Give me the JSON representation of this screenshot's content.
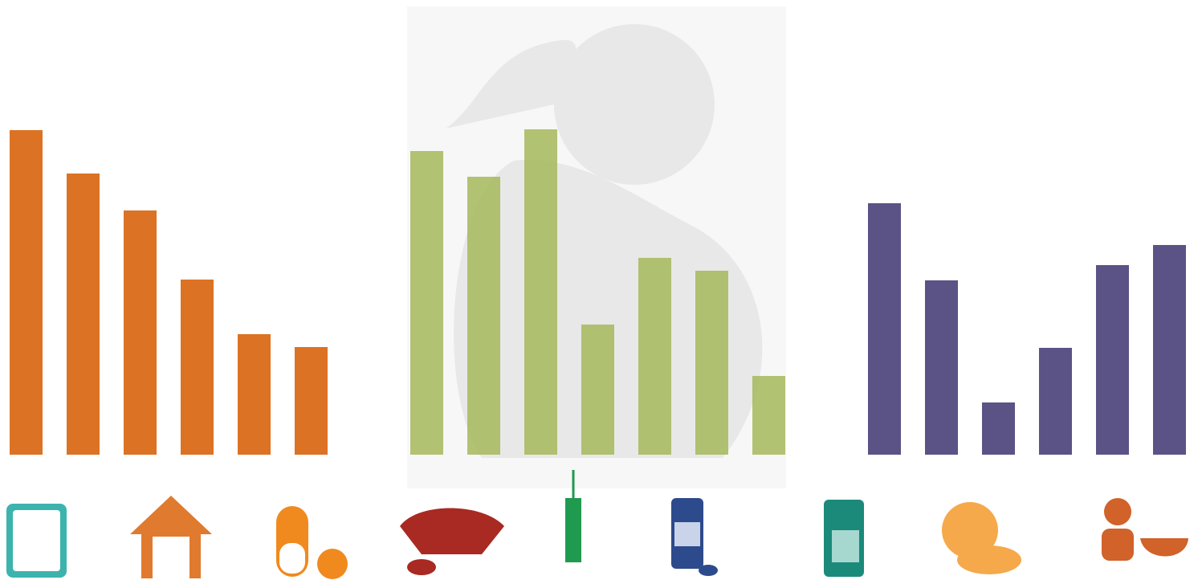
{
  "chart_data": [
    {
      "type": "bar",
      "color": "#dc7224",
      "values": [
        404,
        350,
        304,
        218,
        150,
        134
      ],
      "ylim": [
        0,
        420
      ]
    },
    {
      "type": "bar",
      "color": "#a5b95a",
      "values": [
        378,
        346,
        405,
        162,
        245,
        229,
        98
      ],
      "ylim": [
        0,
        420
      ]
    },
    {
      "type": "bar",
      "color": "#5b5386",
      "values": [
        313,
        217,
        65,
        133,
        236,
        261
      ],
      "ylim": [
        0,
        420
      ]
    }
  ]
}
